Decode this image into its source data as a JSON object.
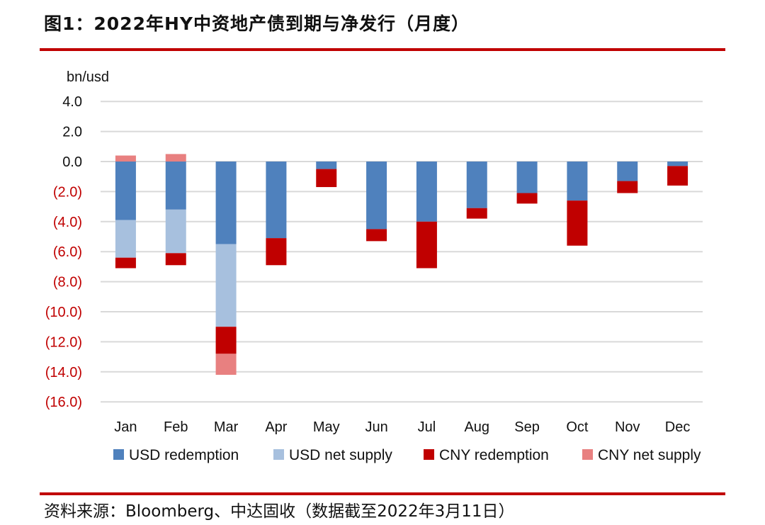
{
  "title": "图1：2022年HY中资地产债到期与净发行（月度）",
  "source": "资料来源：Bloomberg、中达固收（数据截至2022年3月11日）",
  "chart_data": {
    "type": "bar",
    "stacked": true,
    "unit_label": "bn/usd",
    "categories": [
      "Jan",
      "Feb",
      "Mar",
      "Apr",
      "May",
      "Jun",
      "Jul",
      "Aug",
      "Sep",
      "Oct",
      "Nov",
      "Dec"
    ],
    "yticks": [
      "4.0",
      "2.0",
      "0.0",
      "(2.0)",
      "(4.0)",
      "(6.0)",
      "(8.0)",
      "(10.0)",
      "(12.0)",
      "(14.0)",
      "(16.0)"
    ],
    "ylim": [
      -16,
      4
    ],
    "grid": true,
    "legend_position": "bottom",
    "series": [
      {
        "name": "USD redemption",
        "color": "#4f81bd",
        "values": [
          -3.9,
          -3.2,
          -5.5,
          -5.1,
          -0.5,
          -4.5,
          -4.0,
          -3.1,
          -2.1,
          -2.6,
          -1.3,
          -0.3
        ]
      },
      {
        "name": "USD net supply",
        "color": "#a7c0de",
        "values": [
          -2.5,
          -2.9,
          -5.5,
          0,
          0,
          0,
          0,
          0,
          0,
          0,
          0,
          0
        ]
      },
      {
        "name": "CNY redemption",
        "color": "#c00000",
        "values": [
          -0.7,
          -0.8,
          -1.8,
          -1.8,
          -1.2,
          -0.8,
          -3.1,
          -0.7,
          -0.7,
          -3.0,
          -0.8,
          -1.3
        ]
      },
      {
        "name": "CNY net supply",
        "color": "#e88080",
        "values": [
          0.4,
          0.5,
          -1.4,
          0,
          0,
          0,
          0,
          0,
          0,
          0,
          0,
          0
        ]
      }
    ]
  }
}
